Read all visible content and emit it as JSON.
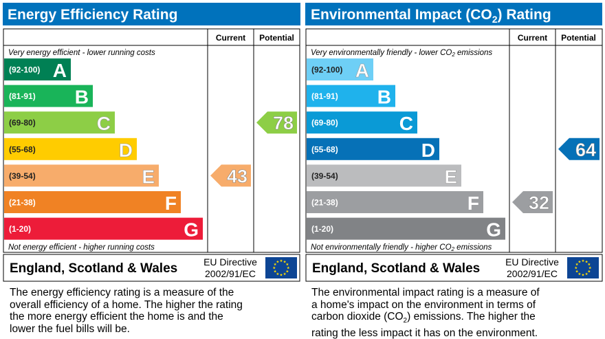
{
  "chart_data": [
    {
      "type": "bar",
      "title": "Energy Efficiency Rating",
      "columns": [
        "Current",
        "Potential"
      ],
      "top_note": "Very energy efficient - lower running costs",
      "bottom_note": "Not energy efficient - higher running costs",
      "bands": [
        {
          "range": "(92-100)",
          "letter": "A",
          "color": "#008054"
        },
        {
          "range": "(81-91)",
          "letter": "B",
          "color": "#19b459"
        },
        {
          "range": "(69-80)",
          "letter": "C",
          "color": "#8dce46"
        },
        {
          "range": "(55-68)",
          "letter": "D",
          "color": "#ffcc00"
        },
        {
          "range": "(39-54)",
          "letter": "E",
          "color": "#f7ac6b"
        },
        {
          "range": "(21-38)",
          "letter": "F",
          "color": "#f08224"
        },
        {
          "range": "(1-20)",
          "letter": "G",
          "color": "#ed1c39"
        }
      ],
      "current": {
        "value": 43,
        "color": "#f7ac6b"
      },
      "potential": {
        "value": 78,
        "color": "#8dce46"
      },
      "footer": {
        "region": "England, Scotland & Wales",
        "directive_line1": "EU Directive",
        "directive_line2": "2002/91/EC"
      },
      "description": [
        "The energy efficiency rating is a measure of the",
        "overall efficiency of a home. The higher the rating",
        "the more energy efficient the home is and the",
        "lower the fuel bills will be."
      ]
    },
    {
      "type": "bar",
      "title_main": "Environmental Impact (CO",
      "title_sub": "2",
      "title_end": ") Rating",
      "columns": [
        "Current",
        "Potential"
      ],
      "top_note_main": "Very environmentally friendly - lower CO",
      "top_note_sub": "2",
      "top_note_end": " emissions",
      "bottom_note_main": "Not environmentally friendly - higher CO",
      "bottom_note_sub": "2",
      "bottom_note_end": " emissions",
      "bands": [
        {
          "range": "(92-100)",
          "letter": "A",
          "color": "#6ecff6"
        },
        {
          "range": "(81-91)",
          "letter": "B",
          "color": "#1fb2ec"
        },
        {
          "range": "(69-80)",
          "letter": "C",
          "color": "#0a9ad6"
        },
        {
          "range": "(55-68)",
          "letter": "D",
          "color": "#0671b7"
        },
        {
          "range": "(39-54)",
          "letter": "E",
          "color": "#bbbcbe"
        },
        {
          "range": "(21-38)",
          "letter": "F",
          "color": "#9c9ea1"
        },
        {
          "range": "(1-20)",
          "letter": "G",
          "color": "#818386"
        }
      ],
      "current": {
        "value": 32,
        "color": "#9c9ea1"
      },
      "potential": {
        "value": 64,
        "color": "#0671b7"
      },
      "footer": {
        "region": "England, Scotland & Wales",
        "directive_line1": "EU Directive",
        "directive_line2": "2002/91/EC"
      },
      "description": [
        "The environmental impact rating is a measure of",
        "a home's impact on the environment in terms of",
        "carbon dioxide (CO",
        "2",
        ") emissions. The higher the",
        "rating the less impact it has on the environment."
      ]
    }
  ],
  "colors": {
    "header": "#0072bc",
    "eu_flag": "#0d4594",
    "eu_stars": "#ffdd00"
  }
}
